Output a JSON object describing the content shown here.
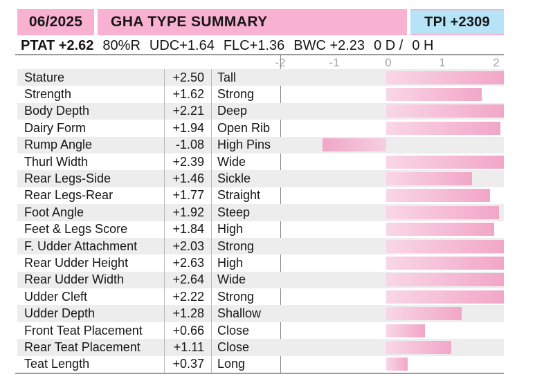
{
  "header": {
    "date": "06/2025",
    "title": "GHA TYPE SUMMARY",
    "tpi_label": "TPI +2309"
  },
  "stats": {
    "ptat": "PTAT +2.62",
    "reliability": "80%R",
    "udc": "UDC+1.64",
    "flc": "FLC+1.36",
    "bwc": "BWC +2.23",
    "daughters": "0 D /",
    "herds": "0 H"
  },
  "colors": {
    "header_pink": "#f9b1d2",
    "header_blue": "#b7e3f6",
    "row_stripe": "#ededed",
    "bar_light": "#f9d7e6",
    "bar_dark": "#f2a6c8",
    "axis_text": "#a5a5a5"
  },
  "chart_data": {
    "type": "bar",
    "orientation": "horizontal",
    "title": "GHA TYPE SUMMARY",
    "legend": "none",
    "grid": "off",
    "axis_position": "top",
    "axis_ticks": [
      "-2",
      "-1",
      "0",
      "1",
      "2"
    ],
    "axis_range": [
      -2.2,
      2.1
    ],
    "bars_clipped_above": 2.0,
    "rows": [
      {
        "trait": "Stature",
        "value": 2.5,
        "label": "+2.50",
        "descriptor": "Tall"
      },
      {
        "trait": "Strength",
        "value": 1.62,
        "label": "+1.62",
        "descriptor": "Strong"
      },
      {
        "trait": "Body Depth",
        "value": 2.21,
        "label": "+2.21",
        "descriptor": "Deep"
      },
      {
        "trait": "Dairy Form",
        "value": 1.94,
        "label": "+1.94",
        "descriptor": "Open Rib"
      },
      {
        "trait": "Rump Angle",
        "value": -1.08,
        "label": "-1.08",
        "descriptor": "High Pins"
      },
      {
        "trait": "Thurl Width",
        "value": 2.39,
        "label": "+2.39",
        "descriptor": "Wide"
      },
      {
        "trait": "Rear Legs-Side",
        "value": 1.46,
        "label": "+1.46",
        "descriptor": "Sickle"
      },
      {
        "trait": "Rear Legs-Rear",
        "value": 1.77,
        "label": "+1.77",
        "descriptor": "Straight"
      },
      {
        "trait": "Foot Angle",
        "value": 1.92,
        "label": "+1.92",
        "descriptor": "Steep"
      },
      {
        "trait": "Feet & Legs Score",
        "value": 1.84,
        "label": "+1.84",
        "descriptor": "High"
      },
      {
        "trait": "F. Udder Attachment",
        "value": 2.03,
        "label": "+2.03",
        "descriptor": "Strong"
      },
      {
        "trait": "Rear Udder Height",
        "value": 2.63,
        "label": "+2.63",
        "descriptor": "High"
      },
      {
        "trait": "Rear Udder Width",
        "value": 2.64,
        "label": "+2.64",
        "descriptor": "Wide"
      },
      {
        "trait": "Udder Cleft",
        "value": 2.22,
        "label": "+2.22",
        "descriptor": "Strong"
      },
      {
        "trait": "Udder Depth",
        "value": 1.28,
        "label": "+1.28",
        "descriptor": "Shallow"
      },
      {
        "trait": "Front Teat Placement",
        "value": 0.66,
        "label": "+0.66",
        "descriptor": "Close"
      },
      {
        "trait": "Rear Teat Placement",
        "value": 1.11,
        "label": "+1.11",
        "descriptor": "Close"
      },
      {
        "trait": "Teat Length",
        "value": 0.37,
        "label": "+0.37",
        "descriptor": "Long"
      }
    ]
  }
}
